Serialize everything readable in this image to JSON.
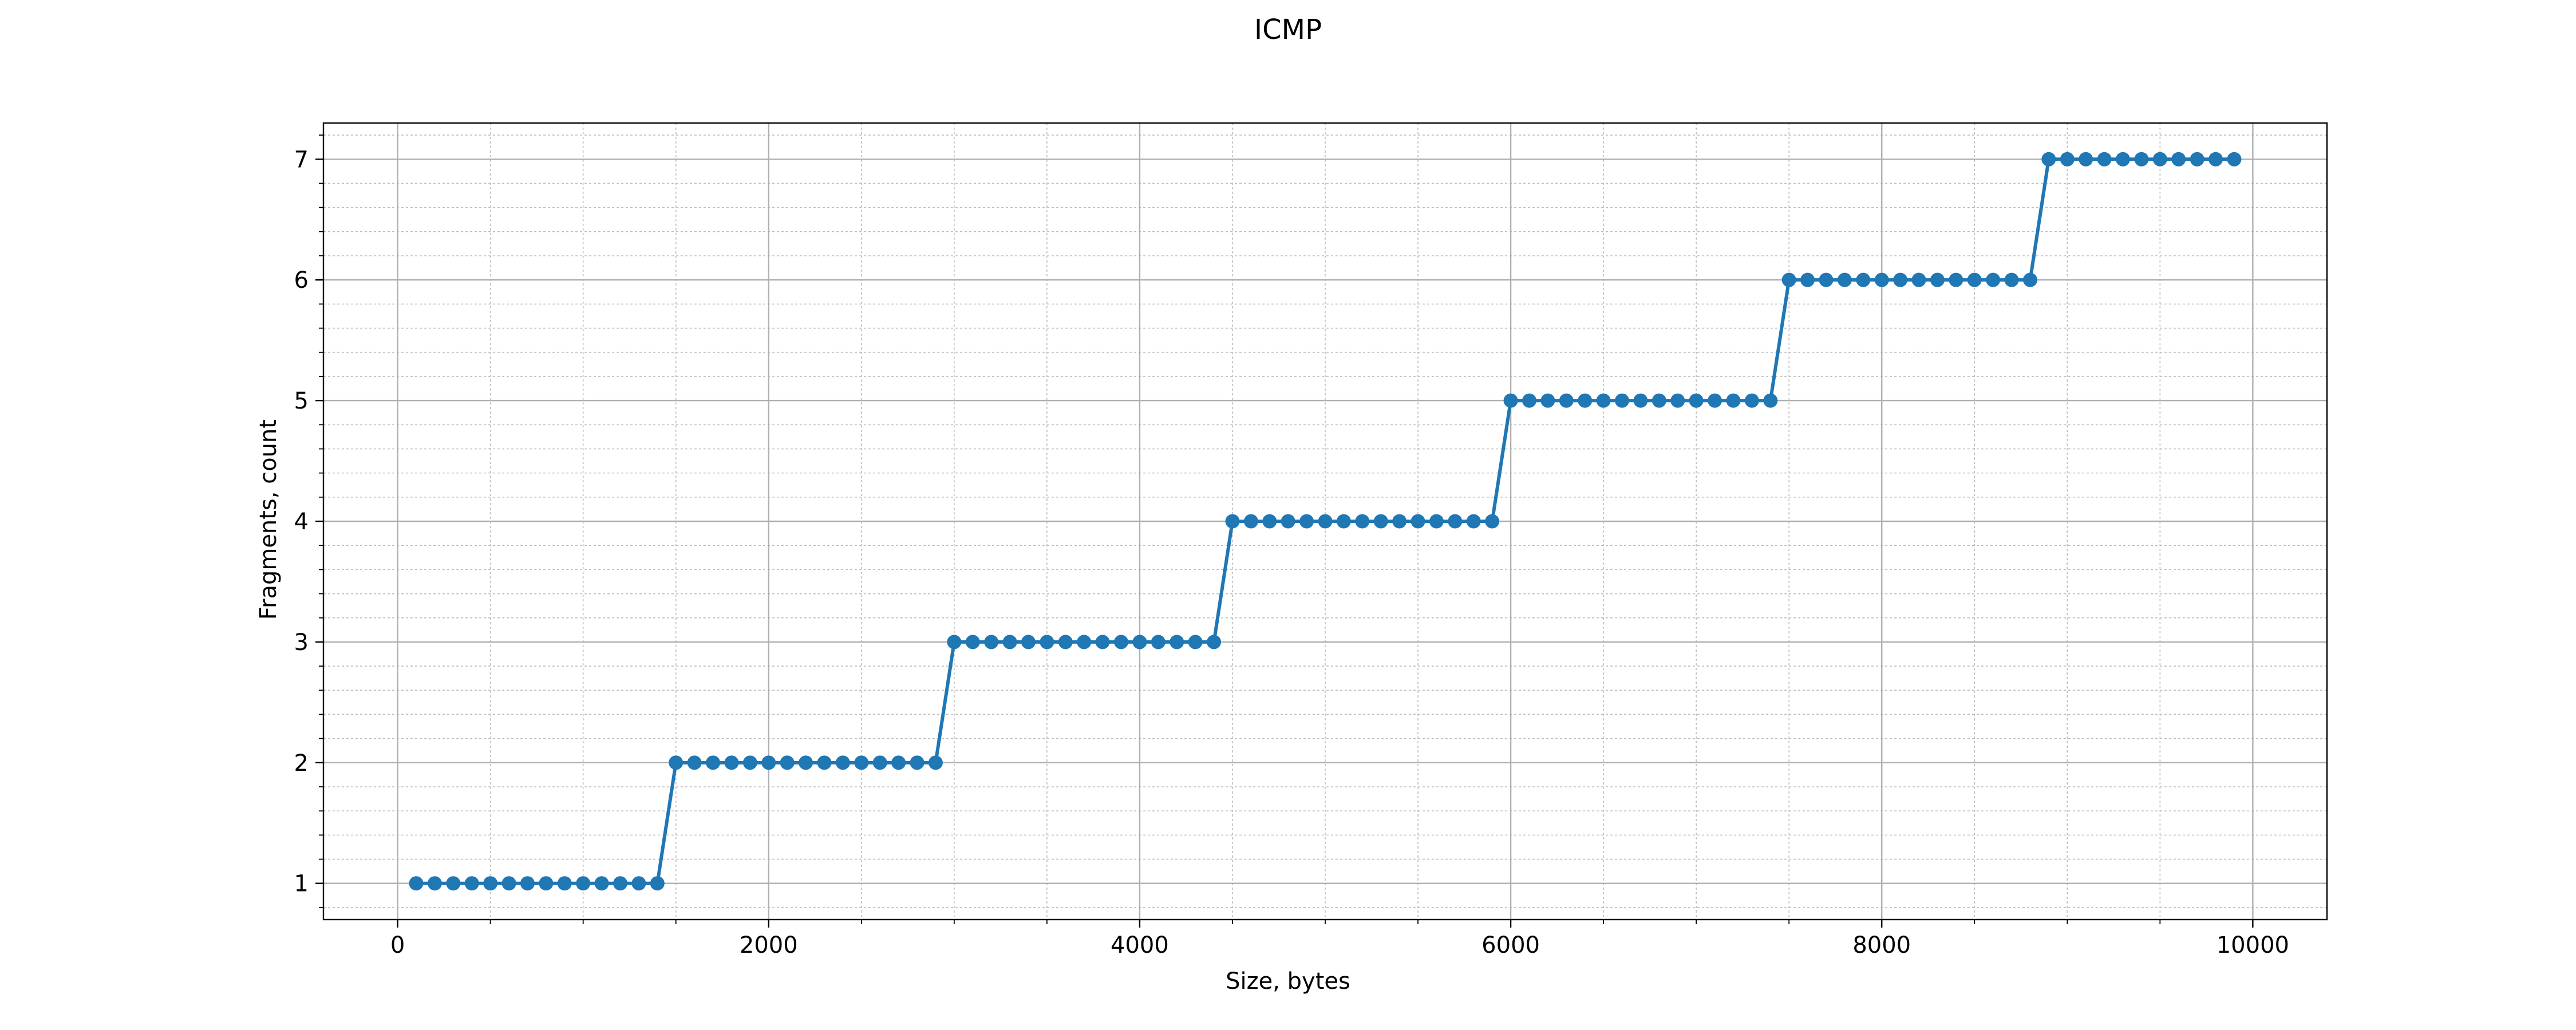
{
  "chart_data": {
    "type": "line",
    "title": "ICMP",
    "xlabel": "Size, bytes",
    "ylabel": "Fragments, count",
    "xlim": [
      -400,
      10400
    ],
    "ylim": [
      0.7,
      7.3
    ],
    "xticks": [
      0,
      2000,
      4000,
      6000,
      8000,
      10000
    ],
    "yticks": [
      1,
      2,
      3,
      4,
      5,
      6,
      7
    ],
    "x_minor_step": 500,
    "y_minor_step": 0.2,
    "grid": true,
    "series": [
      {
        "color": "#1f77b4",
        "marker": "circle",
        "x": [
          100,
          200,
          300,
          400,
          500,
          600,
          700,
          800,
          900,
          1000,
          1100,
          1200,
          1300,
          1400,
          1500,
          1600,
          1700,
          1800,
          1900,
          2000,
          2100,
          2200,
          2300,
          2400,
          2500,
          2600,
          2700,
          2800,
          2900,
          3000,
          3100,
          3200,
          3300,
          3400,
          3500,
          3600,
          3700,
          3800,
          3900,
          4000,
          4100,
          4200,
          4300,
          4400,
          4500,
          4600,
          4700,
          4800,
          4900,
          5000,
          5100,
          5200,
          5300,
          5400,
          5500,
          5600,
          5700,
          5800,
          5900,
          6000,
          6100,
          6200,
          6300,
          6400,
          6500,
          6600,
          6700,
          6800,
          6900,
          7000,
          7100,
          7200,
          7300,
          7400,
          7500,
          7600,
          7700,
          7800,
          7900,
          8000,
          8100,
          8200,
          8300,
          8400,
          8500,
          8600,
          8700,
          8800,
          8900,
          9000,
          9100,
          9200,
          9300,
          9400,
          9500,
          9600,
          9700,
          9800,
          9900
        ],
        "y": [
          1,
          1,
          1,
          1,
          1,
          1,
          1,
          1,
          1,
          1,
          1,
          1,
          1,
          1,
          2,
          2,
          2,
          2,
          2,
          2,
          2,
          2,
          2,
          2,
          2,
          2,
          2,
          2,
          2,
          3,
          3,
          3,
          3,
          3,
          3,
          3,
          3,
          3,
          3,
          3,
          3,
          3,
          3,
          3,
          4,
          4,
          4,
          4,
          4,
          4,
          4,
          4,
          4,
          4,
          4,
          4,
          4,
          4,
          4,
          5,
          5,
          5,
          5,
          5,
          5,
          5,
          5,
          5,
          5,
          5,
          5,
          5,
          5,
          5,
          6,
          6,
          6,
          6,
          6,
          6,
          6,
          6,
          6,
          6,
          6,
          6,
          6,
          6,
          7,
          7,
          7,
          7,
          7,
          7,
          7,
          7,
          7,
          7,
          7
        ]
      }
    ]
  }
}
